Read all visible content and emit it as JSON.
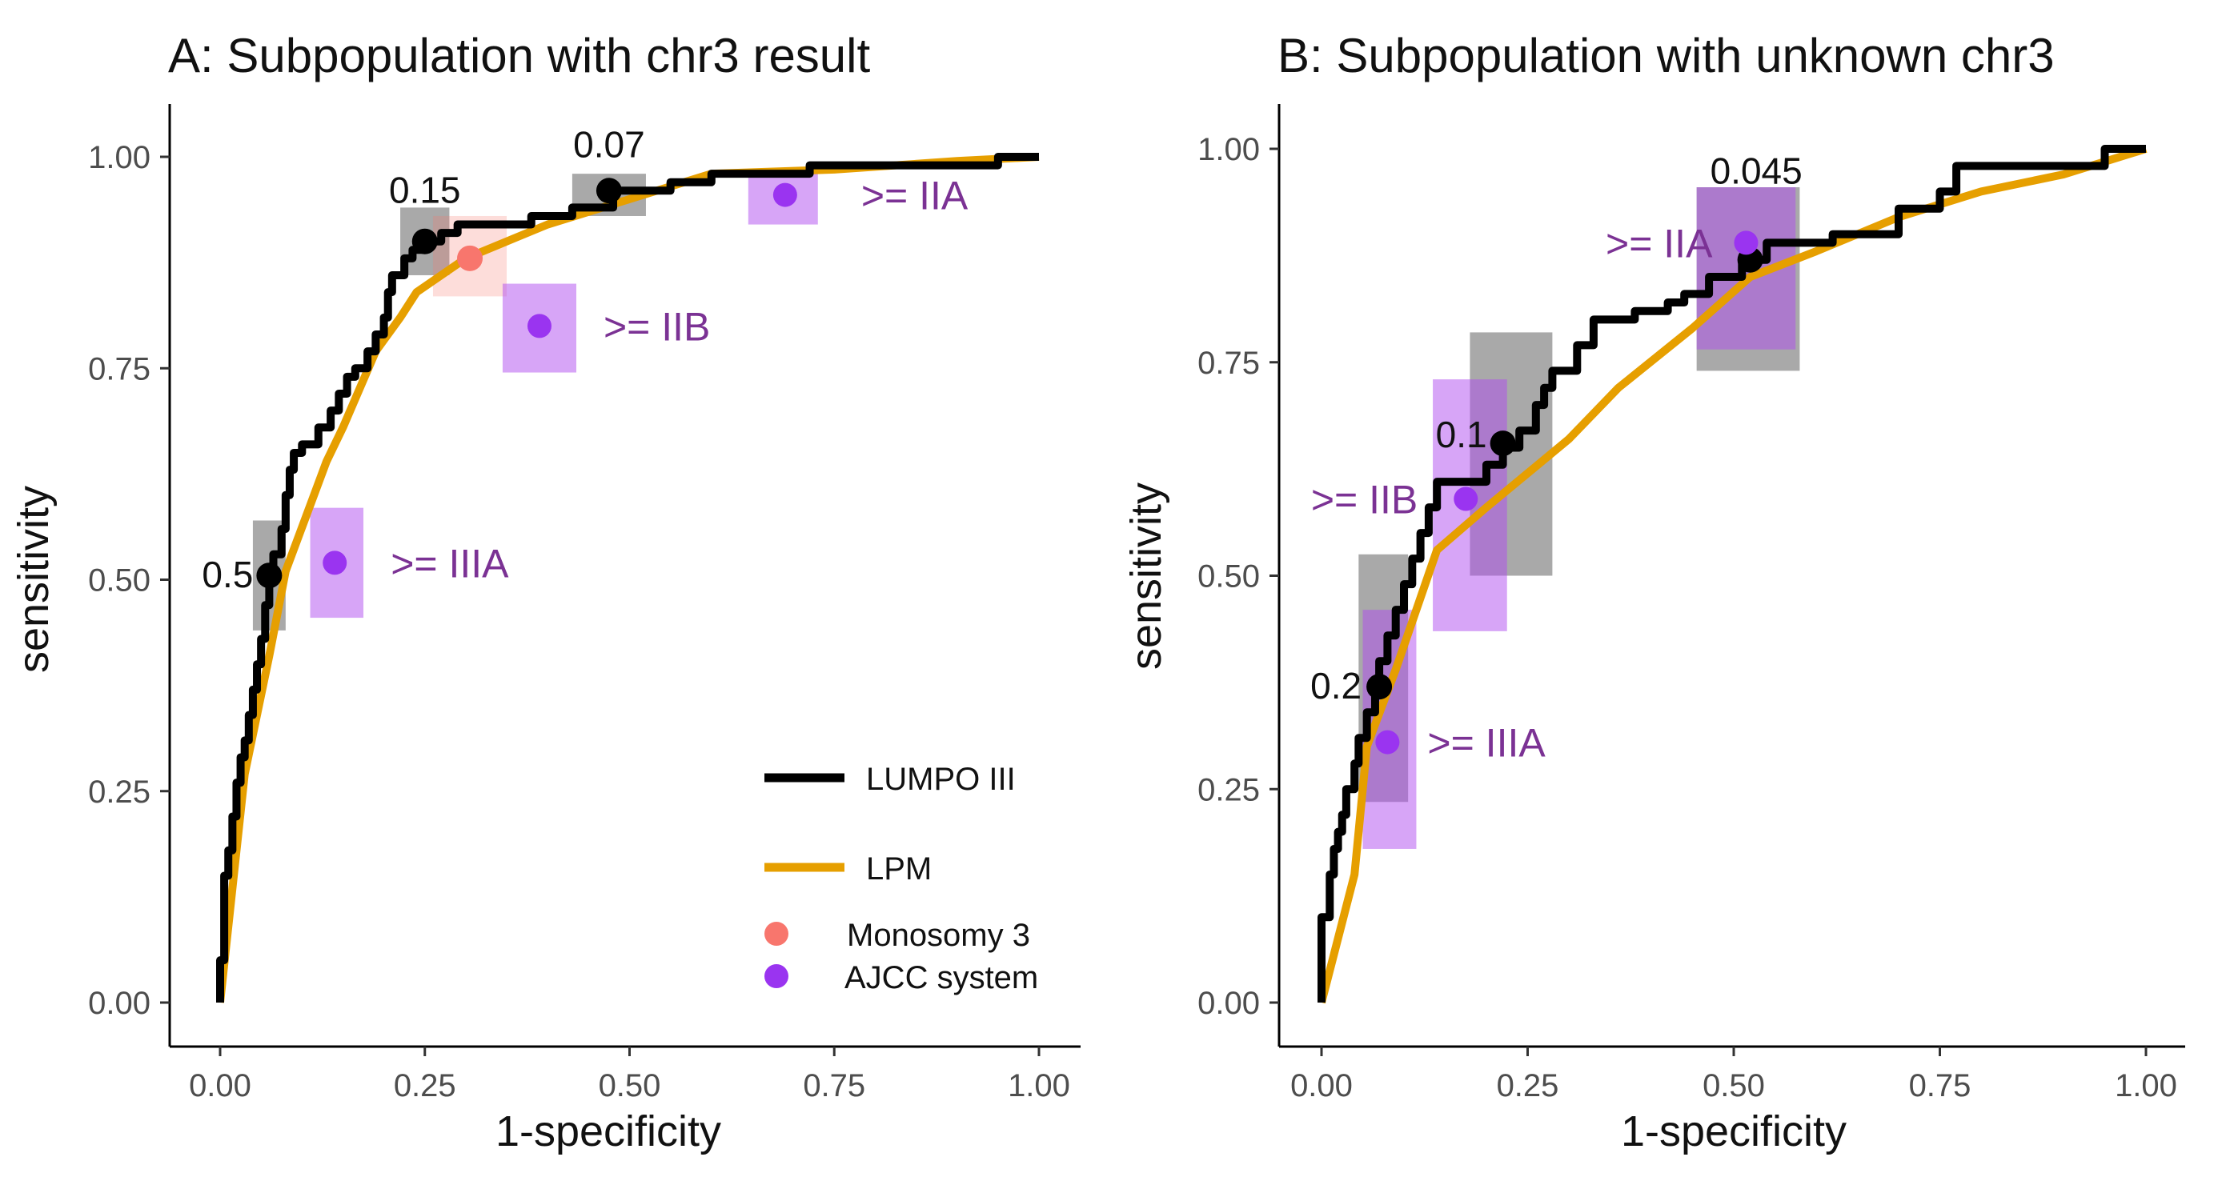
{
  "chart_data": [
    {
      "type": "line",
      "title": "A: Subpopulation with chr3 result",
      "xlabel": "1-specificity",
      "ylabel": "sensitivity",
      "xlim": [
        0,
        1
      ],
      "ylim": [
        0,
        1
      ],
      "xticks": [
        "0.00",
        "0.25",
        "0.50",
        "0.75",
        "1.00"
      ],
      "yticks": [
        "0.00",
        "0.25",
        "0.50",
        "0.75",
        "1.00"
      ],
      "series": [
        {
          "name": "LUMPO III",
          "color": "#000000",
          "step": true,
          "points": [
            [
              0,
              0
            ],
            [
              0,
              0.05
            ],
            [
              0.005,
              0.1
            ],
            [
              0.005,
              0.15
            ],
            [
              0.01,
              0.18
            ],
            [
              0.015,
              0.22
            ],
            [
              0.02,
              0.26
            ],
            [
              0.025,
              0.29
            ],
            [
              0.03,
              0.31
            ],
            [
              0.035,
              0.34
            ],
            [
              0.04,
              0.37
            ],
            [
              0.045,
              0.4
            ],
            [
              0.05,
              0.43
            ],
            [
              0.055,
              0.47
            ],
            [
              0.06,
              0.5
            ],
            [
              0.065,
              0.53
            ],
            [
              0.075,
              0.56
            ],
            [
              0.08,
              0.6
            ],
            [
              0.085,
              0.63
            ],
            [
              0.09,
              0.65
            ],
            [
              0.1,
              0.66
            ],
            [
              0.12,
              0.68
            ],
            [
              0.135,
              0.7
            ],
            [
              0.145,
              0.72
            ],
            [
              0.155,
              0.74
            ],
            [
              0.165,
              0.75
            ],
            [
              0.18,
              0.77
            ],
            [
              0.19,
              0.79
            ],
            [
              0.2,
              0.81
            ],
            [
              0.205,
              0.84
            ],
            [
              0.21,
              0.86
            ],
            [
              0.225,
              0.88
            ],
            [
              0.235,
              0.89
            ],
            [
              0.25,
              0.9
            ],
            [
              0.27,
              0.91
            ],
            [
              0.29,
              0.92
            ],
            [
              0.34,
              0.92
            ],
            [
              0.38,
              0.93
            ],
            [
              0.43,
              0.94
            ],
            [
              0.48,
              0.96
            ],
            [
              0.55,
              0.97
            ],
            [
              0.6,
              0.98
            ],
            [
              0.7,
              0.98
            ],
            [
              0.72,
              0.99
            ],
            [
              0.9,
              0.99
            ],
            [
              0.95,
              1.0
            ],
            [
              1.0,
              1.0
            ]
          ]
        },
        {
          "name": "LPM",
          "color": "#e69f00",
          "step": false,
          "points": [
            [
              0,
              0
            ],
            [
              0.03,
              0.27
            ],
            [
              0.06,
              0.41
            ],
            [
              0.08,
              0.51
            ],
            [
              0.13,
              0.64
            ],
            [
              0.15,
              0.68
            ],
            [
              0.19,
              0.77
            ],
            [
              0.22,
              0.81
            ],
            [
              0.24,
              0.84
            ],
            [
              0.3,
              0.88
            ],
            [
              0.4,
              0.92
            ],
            [
              0.5,
              0.95
            ],
            [
              0.6,
              0.98
            ],
            [
              0.75,
              0.985
            ],
            [
              0.9,
              0.995
            ],
            [
              1.0,
              1.0
            ]
          ]
        }
      ],
      "thresholds": [
        {
          "label": "0.5",
          "x": 0.06,
          "y": 0.505,
          "x_range": [
            0.04,
            0.08
          ],
          "y_range": [
            0.44,
            0.57
          ]
        },
        {
          "label": "0.15",
          "x": 0.25,
          "y": 0.9,
          "x_range": [
            0.22,
            0.28
          ],
          "y_range": [
            0.86,
            0.94
          ]
        },
        {
          "label": "0.07",
          "x": 0.475,
          "y": 0.96,
          "x_range": [
            0.43,
            0.52
          ],
          "y_range": [
            0.93,
            0.98
          ]
        }
      ],
      "monosomy3": [
        {
          "x": 0.305,
          "y": 0.88,
          "x_range": [
            0.26,
            0.35
          ],
          "y_range": [
            0.835,
            0.93
          ]
        }
      ],
      "ajcc": [
        {
          "label": ">= IIIA",
          "x": 0.14,
          "y": 0.52,
          "x_range": [
            0.11,
            0.175
          ],
          "y_range": [
            0.455,
            0.585
          ]
        },
        {
          "label": ">= IIB",
          "x": 0.39,
          "y": 0.8,
          "x_range": [
            0.345,
            0.435
          ],
          "y_range": [
            0.745,
            0.85
          ]
        },
        {
          "label": ">= IIA",
          "x": 0.69,
          "y": 0.955,
          "x_range": [
            0.645,
            0.73
          ],
          "y_range": [
            0.92,
            0.985
          ]
        }
      ]
    },
    {
      "type": "line",
      "title": "B: Subpopulation with unknown chr3",
      "xlabel": "1-specificity",
      "ylabel": "sensitivity",
      "xlim": [
        0,
        1
      ],
      "ylim": [
        0,
        1
      ],
      "xticks": [
        "0.00",
        "0.25",
        "0.50",
        "0.75",
        "1.00"
      ],
      "yticks": [
        "0.00",
        "0.25",
        "0.50",
        "0.75",
        "1.00"
      ],
      "series": [
        {
          "name": "LUMPO III",
          "color": "#000000",
          "step": true,
          "points": [
            [
              0,
              0
            ],
            [
              0,
              0.1
            ],
            [
              0.01,
              0.15
            ],
            [
              0.015,
              0.18
            ],
            [
              0.02,
              0.2
            ],
            [
              0.025,
              0.22
            ],
            [
              0.03,
              0.25
            ],
            [
              0.04,
              0.28
            ],
            [
              0.045,
              0.31
            ],
            [
              0.055,
              0.34
            ],
            [
              0.065,
              0.37
            ],
            [
              0.07,
              0.4
            ],
            [
              0.08,
              0.43
            ],
            [
              0.09,
              0.46
            ],
            [
              0.1,
              0.49
            ],
            [
              0.11,
              0.52
            ],
            [
              0.12,
              0.55
            ],
            [
              0.13,
              0.58
            ],
            [
              0.14,
              0.61
            ],
            [
              0.17,
              0.61
            ],
            [
              0.2,
              0.63
            ],
            [
              0.22,
              0.65
            ],
            [
              0.24,
              0.67
            ],
            [
              0.26,
              0.7
            ],
            [
              0.27,
              0.72
            ],
            [
              0.28,
              0.74
            ],
            [
              0.31,
              0.77
            ],
            [
              0.33,
              0.8
            ],
            [
              0.37,
              0.8
            ],
            [
              0.38,
              0.81
            ],
            [
              0.42,
              0.82
            ],
            [
              0.44,
              0.83
            ],
            [
              0.47,
              0.85
            ],
            [
              0.51,
              0.87
            ],
            [
              0.54,
              0.89
            ],
            [
              0.62,
              0.9
            ],
            [
              0.7,
              0.93
            ],
            [
              0.75,
              0.95
            ],
            [
              0.77,
              0.98
            ],
            [
              0.95,
              0.98
            ],
            [
              0.95,
              1.0
            ],
            [
              1.0,
              1.0
            ]
          ]
        },
        {
          "name": "LPM",
          "color": "#e69f00",
          "step": false,
          "points": [
            [
              0,
              0
            ],
            [
              0.04,
              0.15
            ],
            [
              0.055,
              0.3
            ],
            [
              0.09,
              0.39
            ],
            [
              0.14,
              0.53
            ],
            [
              0.2,
              0.58
            ],
            [
              0.3,
              0.66
            ],
            [
              0.36,
              0.72
            ],
            [
              0.45,
              0.79
            ],
            [
              0.52,
              0.85
            ],
            [
              0.6,
              0.88
            ],
            [
              0.7,
              0.92
            ],
            [
              0.8,
              0.95
            ],
            [
              0.9,
              0.97
            ],
            [
              1.0,
              1.0
            ]
          ]
        }
      ],
      "thresholds": [
        {
          "label": "0.2",
          "x": 0.07,
          "y": 0.37,
          "x_range": [
            0.045,
            0.105
          ],
          "y_range": [
            0.235,
            0.525
          ]
        },
        {
          "label": "0.1",
          "x": 0.22,
          "y": 0.655,
          "x_range": [
            0.18,
            0.28
          ],
          "y_range": [
            0.5,
            0.785
          ]
        },
        {
          "label": "0.045",
          "x": 0.52,
          "y": 0.87,
          "x_range": [
            0.455,
            0.58
          ],
          "y_range": [
            0.74,
            0.955
          ]
        }
      ],
      "monosomy3": [],
      "ajcc": [
        {
          "label": ">= IIIA",
          "x": 0.08,
          "y": 0.305,
          "x_range": [
            0.05,
            0.115
          ],
          "y_range": [
            0.18,
            0.46
          ]
        },
        {
          "label": ">= IIB",
          "x": 0.175,
          "y": 0.59,
          "x_range": [
            0.135,
            0.225
          ],
          "y_range": [
            0.435,
            0.73
          ]
        },
        {
          "label": ">= IIA",
          "x": 0.515,
          "y": 0.89,
          "x_range": [
            0.455,
            0.575
          ],
          "y_range": [
            0.765,
            0.955
          ]
        }
      ]
    }
  ],
  "legend": {
    "position": "bottom-right",
    "lumpo_label": "LUMPO III",
    "lpm_label": "LPM",
    "monosomy_label": "Monosomy 3",
    "ajcc_label": "AJCC system"
  },
  "colors": {
    "lumpo": "#000000",
    "lpm": "#e69f00",
    "monosomy": "#f8766d",
    "ajcc": "#9a34f0",
    "ajcc_text": "#7b3294",
    "ci_gray": "#8c8c8c",
    "ci_purple": "#b04cf0",
    "ci_pink": "#f8766d"
  }
}
